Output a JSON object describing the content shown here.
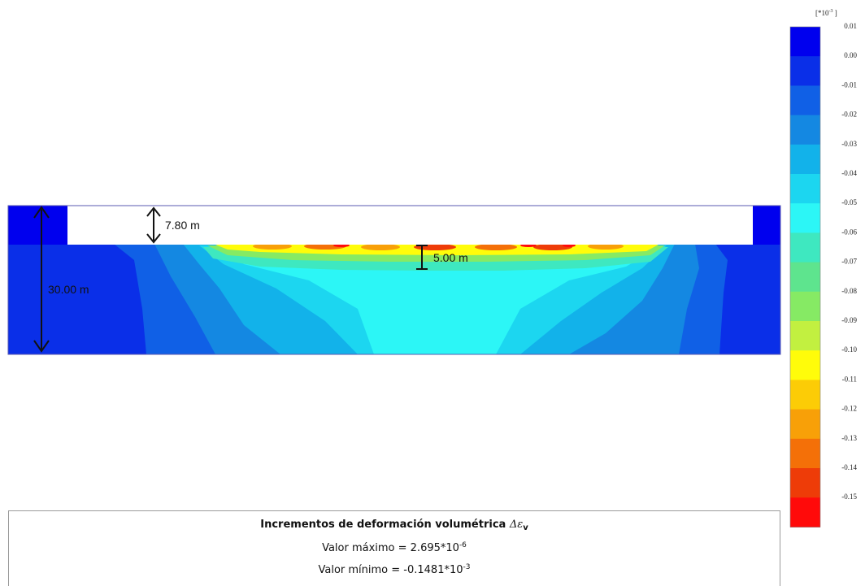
{
  "dimensions": {
    "excavation_depth": "7.80 m",
    "layer_thickness": "5.00 m",
    "model_depth": "30.00 m"
  },
  "legend": {
    "unit_base": "[*10",
    "unit_exp": "-3",
    "unit_close": " ]",
    "ticks": [
      "0.01",
      "0.00",
      "-0.01",
      "-0.02",
      "-0.03",
      "-0.04",
      "-0.05",
      "-0.06",
      "-0.07",
      "-0.08",
      "-0.09",
      "-0.10",
      "-0.11",
      "-0.12",
      "-0.13",
      "-0.14",
      "-0.15"
    ],
    "colors": [
      "#0000ee",
      "#0a2fe8",
      "#1060e6",
      "#1488e2",
      "#12b2ea",
      "#1cd6f0",
      "#2cf6f6",
      "#3ee8c0",
      "#5ee48e",
      "#86ea64",
      "#c2f040",
      "#fffc0a",
      "#fccc06",
      "#f8a008",
      "#f47008",
      "#ee3c08",
      "#ff0a0a"
    ]
  },
  "info": {
    "title_text": "Incrementos de deformación volumétrica ",
    "title_symbol": "Δε",
    "title_sub": "v",
    "max_prefix": "Valor máximo = 2.695*10",
    "max_exp": "-6",
    "min_prefix": "Valor mínimo = -0.1481*10",
    "min_exp": "-3"
  }
}
